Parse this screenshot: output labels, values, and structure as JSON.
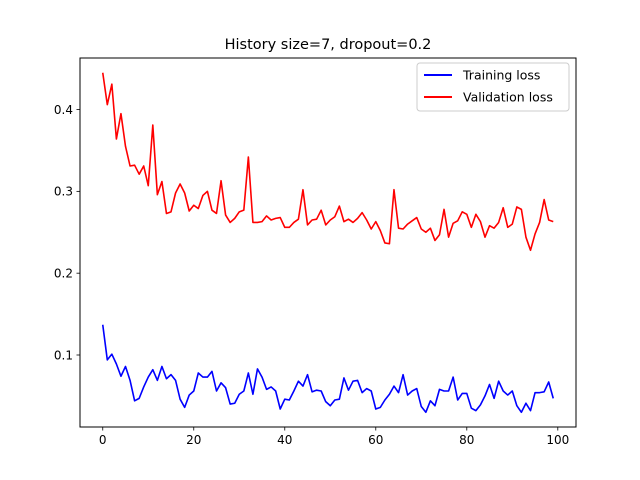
{
  "chart_data": {
    "type": "line",
    "title": "History size=7, dropout=0.2",
    "xlabel": "",
    "ylabel": "",
    "xlim": [
      -5,
      104
    ],
    "ylim": [
      0.012,
      0.463
    ],
    "xticks": [
      0,
      20,
      40,
      60,
      80,
      100
    ],
    "yticks": [
      0.1,
      0.2,
      0.3,
      0.4
    ],
    "xtick_labels": [
      "0",
      "20",
      "40",
      "60",
      "80",
      "100"
    ],
    "ytick_labels": [
      "0.1",
      "0.2",
      "0.3",
      "0.4"
    ],
    "grid": false,
    "legend_position": "top-right",
    "series": [
      {
        "name": "Training loss",
        "color": "#0000ff",
        "x": [
          0,
          1,
          2,
          3,
          4,
          5,
          6,
          7,
          8,
          9,
          10,
          11,
          12,
          13,
          14,
          15,
          16,
          17,
          18,
          19,
          20,
          21,
          22,
          23,
          24,
          25,
          26,
          27,
          28,
          29,
          30,
          31,
          32,
          33,
          34,
          35,
          36,
          37,
          38,
          39,
          40,
          41,
          42,
          43,
          44,
          45,
          46,
          47,
          48,
          49,
          50,
          51,
          52,
          53,
          54,
          55,
          56,
          57,
          58,
          59,
          60,
          61,
          62,
          63,
          64,
          65,
          66,
          67,
          68,
          69,
          70,
          71,
          72,
          73,
          74,
          75,
          76,
          77,
          78,
          79,
          80,
          81,
          82,
          83,
          84,
          85,
          86,
          87,
          88,
          89,
          90,
          91,
          92,
          93,
          94,
          95,
          96,
          97,
          98,
          99
        ],
        "values": [
          0.137,
          0.094,
          0.101,
          0.089,
          0.074,
          0.086,
          0.069,
          0.044,
          0.047,
          0.061,
          0.073,
          0.082,
          0.069,
          0.086,
          0.071,
          0.076,
          0.069,
          0.046,
          0.036,
          0.051,
          0.056,
          0.078,
          0.073,
          0.073,
          0.08,
          0.056,
          0.066,
          0.06,
          0.04,
          0.041,
          0.052,
          0.056,
          0.078,
          0.052,
          0.083,
          0.073,
          0.058,
          0.061,
          0.056,
          0.034,
          0.046,
          0.045,
          0.056,
          0.068,
          0.062,
          0.076,
          0.055,
          0.057,
          0.056,
          0.043,
          0.038,
          0.045,
          0.046,
          0.072,
          0.057,
          0.068,
          0.069,
          0.054,
          0.059,
          0.056,
          0.034,
          0.036,
          0.045,
          0.052,
          0.062,
          0.054,
          0.076,
          0.051,
          0.056,
          0.059,
          0.037,
          0.03,
          0.044,
          0.038,
          0.058,
          0.056,
          0.056,
          0.073,
          0.045,
          0.053,
          0.053,
          0.035,
          0.032,
          0.039,
          0.05,
          0.064,
          0.047,
          0.068,
          0.056,
          0.051,
          0.056,
          0.038,
          0.03,
          0.041,
          0.032,
          0.054,
          0.054,
          0.055,
          0.067,
          0.047
        ]
      },
      {
        "name": "Validation loss",
        "color": "#ff0000",
        "x": [
          0,
          1,
          2,
          3,
          4,
          5,
          6,
          7,
          8,
          9,
          10,
          11,
          12,
          13,
          14,
          15,
          16,
          17,
          18,
          19,
          20,
          21,
          22,
          23,
          24,
          25,
          26,
          27,
          28,
          29,
          30,
          31,
          32,
          33,
          34,
          35,
          36,
          37,
          38,
          39,
          40,
          41,
          42,
          43,
          44,
          45,
          46,
          47,
          48,
          49,
          50,
          51,
          52,
          53,
          54,
          55,
          56,
          57,
          58,
          59,
          60,
          61,
          62,
          63,
          64,
          65,
          66,
          67,
          68,
          69,
          70,
          71,
          72,
          73,
          74,
          75,
          76,
          77,
          78,
          79,
          80,
          81,
          82,
          83,
          84,
          85,
          86,
          87,
          88,
          89,
          90,
          91,
          92,
          93,
          94,
          95,
          96,
          97,
          98,
          99
        ],
        "values": [
          0.445,
          0.406,
          0.431,
          0.364,
          0.395,
          0.355,
          0.331,
          0.332,
          0.321,
          0.331,
          0.307,
          0.381,
          0.296,
          0.312,
          0.273,
          0.275,
          0.298,
          0.309,
          0.298,
          0.276,
          0.283,
          0.279,
          0.295,
          0.3,
          0.277,
          0.273,
          0.313,
          0.271,
          0.262,
          0.267,
          0.275,
          0.277,
          0.342,
          0.262,
          0.262,
          0.263,
          0.27,
          0.265,
          0.267,
          0.268,
          0.256,
          0.256,
          0.262,
          0.266,
          0.302,
          0.259,
          0.265,
          0.266,
          0.277,
          0.259,
          0.265,
          0.269,
          0.282,
          0.263,
          0.266,
          0.262,
          0.267,
          0.274,
          0.265,
          0.254,
          0.263,
          0.252,
          0.237,
          0.236,
          0.302,
          0.255,
          0.254,
          0.26,
          0.264,
          0.268,
          0.254,
          0.25,
          0.255,
          0.24,
          0.247,
          0.278,
          0.244,
          0.261,
          0.264,
          0.275,
          0.272,
          0.256,
          0.272,
          0.263,
          0.244,
          0.258,
          0.255,
          0.262,
          0.28,
          0.256,
          0.26,
          0.281,
          0.278,
          0.244,
          0.228,
          0.248,
          0.262,
          0.29,
          0.265,
          0.263
        ]
      }
    ]
  }
}
